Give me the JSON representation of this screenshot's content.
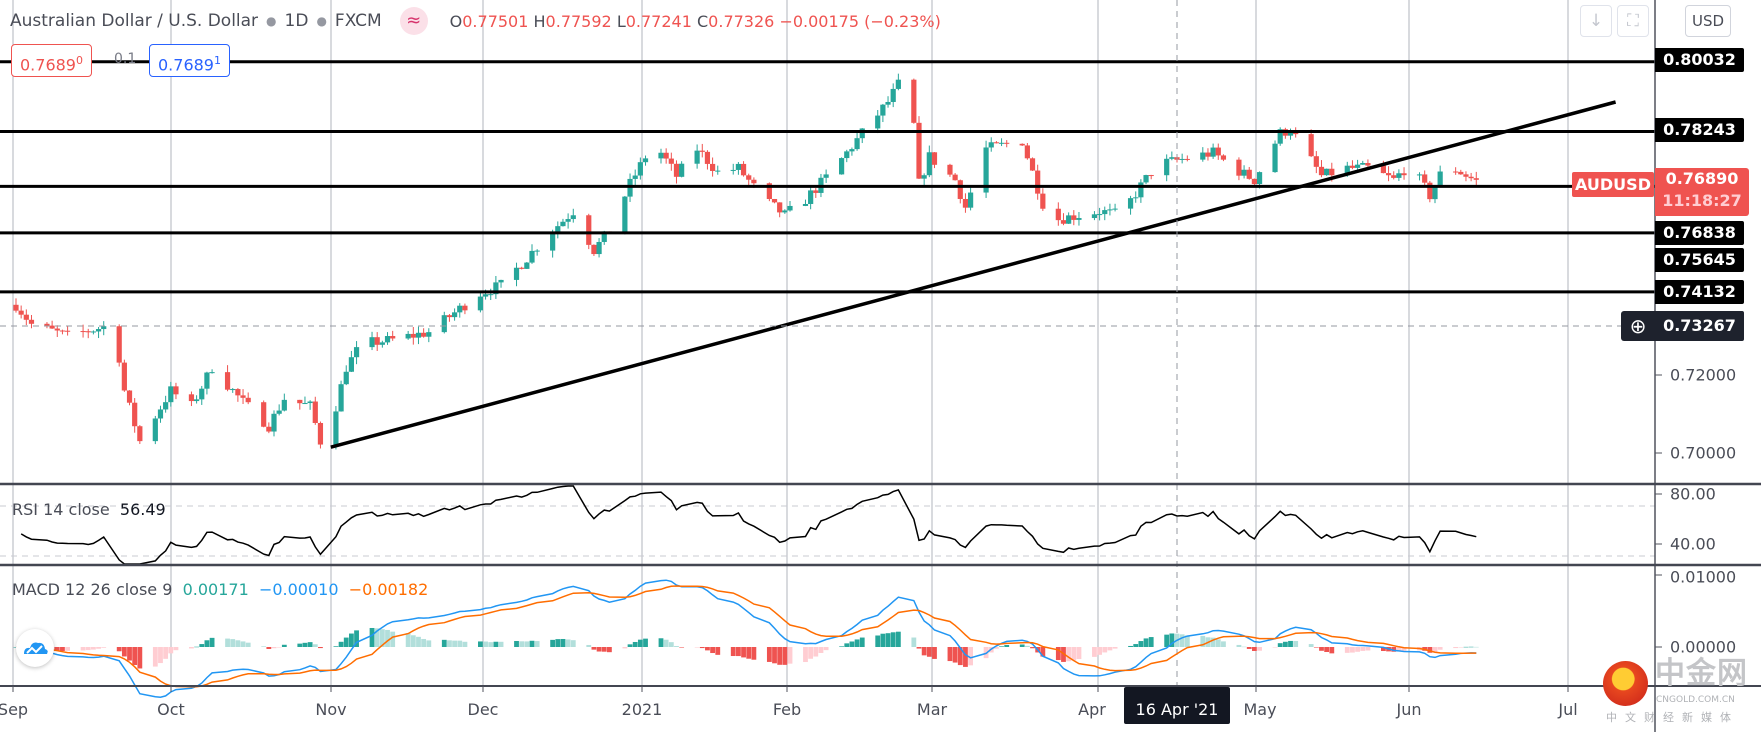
{
  "header": {
    "title": "Australian Dollar / U.S. Dollar",
    "interval": "1D",
    "exchange": "FXCM",
    "indicator_icon": "wave-icon",
    "ohlc": {
      "o_label": "O",
      "o": "0.77501",
      "h_label": "H",
      "h": "0.77592",
      "l_label": "L",
      "l": "0.77241",
      "c_label": "C",
      "c": "0.77326",
      "change": "−0.00175 (−0.23%)"
    }
  },
  "measure": {
    "left_value": "0.7689",
    "left_sup": "0",
    "mid": "0.1",
    "right_value": "0.7689",
    "right_sup": "1"
  },
  "toolbar": {
    "currency": "USD",
    "scroll_icon": "arrow-down-icon",
    "fullscreen_icon": "fullscreen-icon"
  },
  "price_axis": {
    "ticks": [
      "0.72000",
      "0.70000"
    ],
    "line_labels": [
      "0.80032",
      "0.78243",
      "0.76838",
      "0.75645",
      "0.74132"
    ],
    "symbol": "AUDUSD",
    "last_price": "0.76890",
    "countdown": "11:18:27",
    "crosshair_price": "0.73267"
  },
  "rsi": {
    "label": "RSI 14 close",
    "value": "56.49",
    "ticks": [
      "80.00",
      "40.00"
    ]
  },
  "macd": {
    "label": "MACD 12 26 close 9",
    "hist": "0.00171",
    "macd": "−0.00010",
    "signal": "−0.00182",
    "ticks": [
      "0.01000",
      "0.00000"
    ]
  },
  "time_axis": {
    "labels": [
      "Sep",
      "Oct",
      "Nov",
      "Dec",
      "2021",
      "Feb",
      "Mar",
      "Apr",
      "May",
      "Jun",
      "Jul"
    ],
    "crosshair_date": "16 Apr '21"
  },
  "watermark": {
    "name": "中金网",
    "domain": "CNGOLD.COM.CN",
    "slogan": "中文财经新媒体"
  },
  "colors": {
    "up": "#26a69a",
    "down": "#ef5350",
    "macd": "#2196f3",
    "signal": "#ff6d00",
    "last": "#ef5350"
  },
  "chart_data": {
    "type": "candlestick",
    "symbol": "AUDUSD",
    "start_date": "2020-09-01",
    "close_anchors_day_price": [
      [
        0,
        0.738
      ],
      [
        3,
        0.733
      ],
      [
        10,
        0.73
      ],
      [
        19,
        0.733
      ],
      [
        21,
        0.716
      ],
      [
        24,
        0.703
      ],
      [
        30,
        0.716
      ],
      [
        34,
        0.712
      ],
      [
        38,
        0.722
      ],
      [
        44,
        0.713
      ],
      [
        49,
        0.707
      ],
      [
        52,
        0.714
      ],
      [
        57,
        0.712
      ],
      [
        59,
        0.703
      ],
      [
        62,
        0.712
      ],
      [
        64,
        0.722
      ],
      [
        67,
        0.728
      ],
      [
        73,
        0.729
      ],
      [
        80,
        0.731
      ],
      [
        84,
        0.735
      ],
      [
        90,
        0.741
      ],
      [
        94,
        0.743
      ],
      [
        99,
        0.75
      ],
      [
        103,
        0.756
      ],
      [
        108,
        0.762
      ],
      [
        112,
        0.752
      ],
      [
        115,
        0.757
      ],
      [
        119,
        0.769
      ],
      [
        122,
        0.776
      ],
      [
        125,
        0.777
      ],
      [
        128,
        0.771
      ],
      [
        132,
        0.778
      ],
      [
        136,
        0.772
      ],
      [
        140,
        0.773
      ],
      [
        145,
        0.765
      ],
      [
        149,
        0.761
      ],
      [
        153,
        0.765
      ],
      [
        158,
        0.772
      ],
      [
        164,
        0.782
      ],
      [
        169,
        0.79
      ],
      [
        173,
        0.799
      ],
      [
        175,
        0.769
      ],
      [
        177,
        0.776
      ],
      [
        182,
        0.77
      ],
      [
        184,
        0.763
      ],
      [
        188,
        0.778
      ],
      [
        195,
        0.78
      ],
      [
        199,
        0.764
      ],
      [
        202,
        0.76
      ],
      [
        206,
        0.761
      ],
      [
        210,
        0.762
      ],
      [
        214,
        0.761
      ],
      [
        221,
        0.774
      ],
      [
        225,
        0.775
      ],
      [
        232,
        0.777
      ],
      [
        236,
        0.773
      ],
      [
        240,
        0.77
      ],
      [
        245,
        0.782
      ],
      [
        247,
        0.783
      ],
      [
        249,
        0.779
      ],
      [
        253,
        0.771
      ],
      [
        258,
        0.773
      ],
      [
        262,
        0.773
      ],
      [
        267,
        0.77
      ],
      [
        270,
        0.774
      ],
      [
        274,
        0.766
      ],
      [
        277,
        0.774
      ],
      [
        280,
        0.772
      ],
      [
        284,
        0.7689
      ]
    ],
    "horizontal_levels": [
      0.80032,
      0.78243,
      0.76838,
      0.75645,
      0.74132
    ],
    "trendline": [
      [
        61,
        0.7015
      ],
      [
        310,
        0.79
      ]
    ],
    "price_range": [
      0.692,
      0.806
    ],
    "rsi_range": [
      20,
      100
    ],
    "macd_range": [
      -0.0055,
      0.0115
    ]
  }
}
